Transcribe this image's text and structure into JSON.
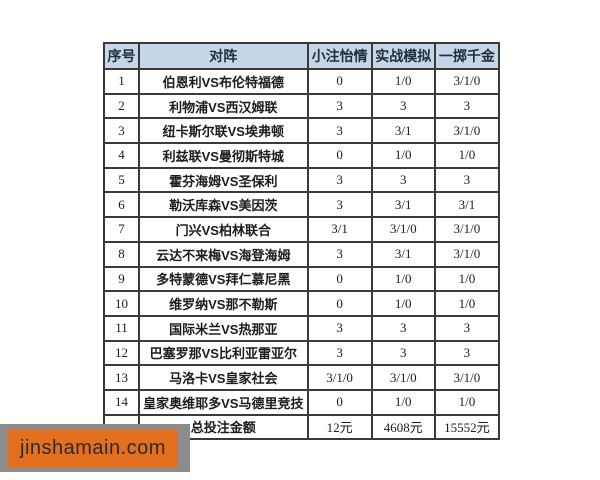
{
  "colors": {
    "header_bg": "#c5d7e7",
    "border": "#3a3a3a",
    "watermark_orange": "#e2701e",
    "watermark_shadow": "#8c8c8c"
  },
  "watermark": {
    "text": "jinshamain.com"
  },
  "table": {
    "columns": [
      "序号",
      "对阵",
      "小注怡情",
      "实战模拟",
      "一掷千金"
    ],
    "rows": [
      {
        "no": "1",
        "match": "伯恩利VS布伦特福德",
        "small": "0",
        "sim": "1/0",
        "big": "3/1/0"
      },
      {
        "no": "2",
        "match": "利物浦VS西汉姆联",
        "small": "3",
        "sim": "3",
        "big": "3"
      },
      {
        "no": "3",
        "match": "纽卡斯尔联VS埃弗顿",
        "small": "3",
        "sim": "3/1",
        "big": "3/1/0"
      },
      {
        "no": "4",
        "match": "利兹联VS曼彻斯特城",
        "small": "0",
        "sim": "1/0",
        "big": "1/0"
      },
      {
        "no": "5",
        "match": "霍芬海姆VS圣保利",
        "small": "3",
        "sim": "3",
        "big": "3"
      },
      {
        "no": "6",
        "match": "勒沃库森VS美因茨",
        "small": "3",
        "sim": "3/1",
        "big": "3/1"
      },
      {
        "no": "7",
        "match": "门兴VS柏林联合",
        "small": "3/1",
        "sim": "3/1/0",
        "big": "3/1/0"
      },
      {
        "no": "8",
        "match": "云达不来梅VS海登海姆",
        "small": "3",
        "sim": "3/1",
        "big": "3/1/0"
      },
      {
        "no": "9",
        "match": "多特蒙德VS拜仁慕尼黑",
        "small": "0",
        "sim": "1/0",
        "big": "1/0"
      },
      {
        "no": "10",
        "match": "维罗纳VS那不勒斯",
        "small": "0",
        "sim": "1/0",
        "big": "1/0"
      },
      {
        "no": "11",
        "match": "国际米兰VS热那亚",
        "small": "3",
        "sim": "3",
        "big": "3"
      },
      {
        "no": "12",
        "match": "巴塞罗那VS比利亚雷亚尔",
        "small": "3",
        "sim": "3",
        "big": "3"
      },
      {
        "no": "13",
        "match": "马洛卡VS皇家社会",
        "small": "3/1/0",
        "sim": "3/1/0",
        "big": "3/1/0"
      },
      {
        "no": "14",
        "match": "皇家奥维耶多VS马德里竞技",
        "small": "0",
        "sim": "1/0",
        "big": "1/0"
      }
    ],
    "total": {
      "label": "总投注金额",
      "small": "12元",
      "sim": "4608元",
      "big": "15552元"
    }
  }
}
